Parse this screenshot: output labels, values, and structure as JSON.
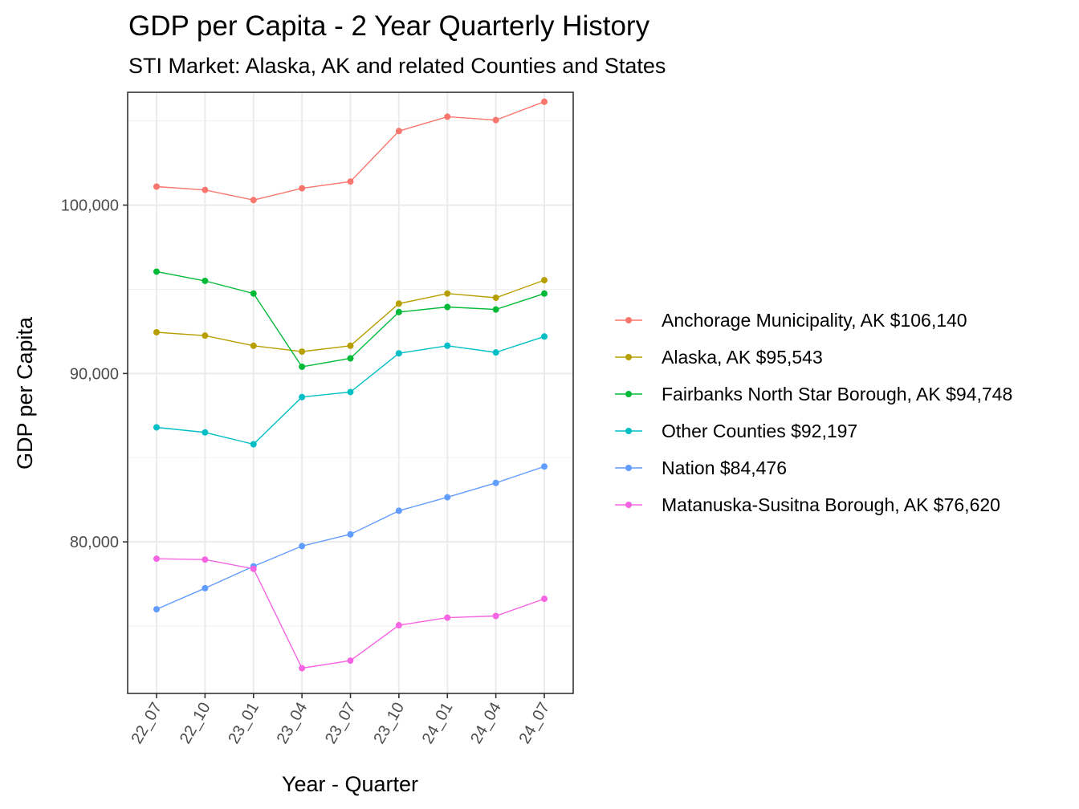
{
  "chart_data": {
    "type": "line",
    "title": "GDP per Capita - 2 Year Quarterly History",
    "subtitle": "STI Market: Alaska, AK and related Counties and States",
    "xlabel": "Year - Quarter",
    "ylabel": "GDP per Capita",
    "categories": [
      "22_07",
      "22_10",
      "23_01",
      "23_04",
      "23_07",
      "23_10",
      "24_01",
      "24_04",
      "24_07"
    ],
    "ylim": [
      71000,
      106700
    ],
    "yticks": [
      80000,
      90000,
      100000
    ],
    "ytick_labels": [
      "80,000",
      "90,000",
      "100,000"
    ],
    "grid": true,
    "legend_position": "right",
    "series": [
      {
        "name": "Anchorage Municipality, AK $106,140",
        "color": "#F8766D",
        "values": [
          101100,
          100900,
          100300,
          101000,
          101400,
          104400,
          105250,
          105050,
          106140
        ]
      },
      {
        "name": "Alaska, AK $95,543",
        "color": "#B79F00",
        "values": [
          92450,
          92250,
          91650,
          91300,
          91650,
          94150,
          94750,
          94500,
          95543
        ]
      },
      {
        "name": "Fairbanks North Star Borough, AK $94,748",
        "color": "#00BA38",
        "values": [
          96050,
          95500,
          94750,
          90400,
          90900,
          93650,
          93950,
          93800,
          94748
        ]
      },
      {
        "name": "Other Counties $92,197",
        "color": "#00BFC4",
        "values": [
          86800,
          86500,
          85800,
          88600,
          88900,
          91200,
          91650,
          91250,
          92197
        ]
      },
      {
        "name": "Nation $84,476",
        "color": "#619CFF",
        "values": [
          76000,
          77250,
          78550,
          79750,
          80450,
          81850,
          82650,
          83500,
          84476
        ]
      },
      {
        "name": "Matanuska-Susitna Borough, AK $76,620",
        "color": "#F564E3",
        "values": [
          79000,
          78950,
          78400,
          72500,
          72950,
          75050,
          75500,
          75600,
          76620
        ]
      }
    ]
  }
}
